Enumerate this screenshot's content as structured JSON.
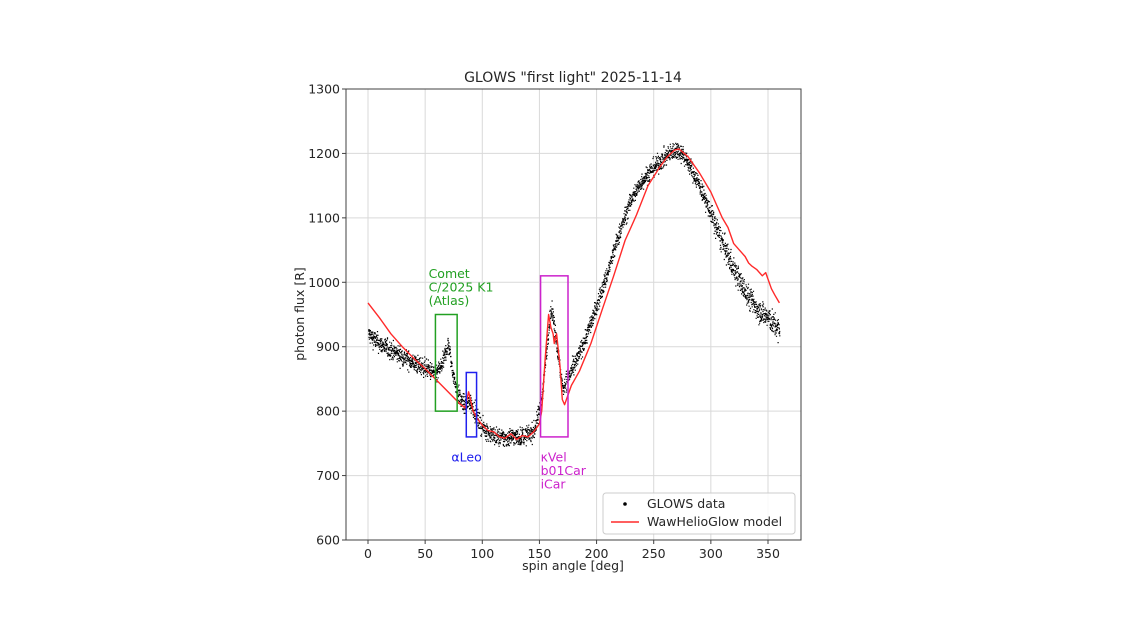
{
  "chart_data": {
    "type": "scatter",
    "title": "GLOWS \"first light\" 2025-11-14",
    "xlabel": "spin angle [deg]",
    "ylabel": "photon flux [R]",
    "xlim": [
      -10,
      378
    ],
    "ylim": [
      600,
      1300
    ],
    "xticks": [
      0,
      50,
      100,
      150,
      200,
      250,
      300,
      350
    ],
    "yticks": [
      600,
      700,
      800,
      900,
      1000,
      1100,
      1200,
      1300
    ],
    "grid": true,
    "legend_position": "lower right",
    "legend": [
      {
        "label": "GLOWS data",
        "marker": "dot",
        "color": "#000000"
      },
      {
        "label": "WawHelioGlow model",
        "marker": "line",
        "color": "#ff2a2a"
      }
    ],
    "series": [
      {
        "name": "GLOWS data",
        "kind": "scatter",
        "color": "#000000",
        "x": [
          0,
          10,
          20,
          30,
          40,
          50,
          55,
          60,
          65,
          68,
          70,
          72,
          75,
          78,
          80,
          85,
          88,
          92,
          95,
          100,
          105,
          110,
          115,
          120,
          125,
          130,
          135,
          140,
          145,
          148,
          152,
          155,
          158,
          160,
          162,
          165,
          168,
          170,
          172,
          175,
          180,
          190,
          200,
          210,
          220,
          230,
          240,
          250,
          260,
          265,
          270,
          275,
          280,
          290,
          300,
          310,
          320,
          330,
          340,
          350,
          360
        ],
        "y": [
          920,
          905,
          895,
          885,
          875,
          868,
          862,
          860,
          875,
          895,
          905,
          880,
          850,
          830,
          820,
          808,
          815,
          805,
          790,
          775,
          768,
          762,
          760,
          758,
          762,
          760,
          762,
          765,
          770,
          790,
          825,
          880,
          935,
          955,
          945,
          900,
          860,
          835,
          845,
          855,
          870,
          915,
          965,
          1020,
          1080,
          1130,
          1160,
          1180,
          1195,
          1203,
          1207,
          1200,
          1185,
          1150,
          1105,
          1060,
          1020,
          985,
          960,
          945,
          925
        ],
        "scatter_amplitude": 12
      },
      {
        "name": "WawHelioGlow model",
        "kind": "line",
        "color": "#ff2a2a",
        "x": [
          0,
          10,
          20,
          30,
          40,
          50,
          60,
          70,
          80,
          85,
          88,
          90,
          92,
          95,
          100,
          105,
          110,
          115,
          120,
          125,
          130,
          135,
          140,
          145,
          150,
          152,
          155,
          158,
          160,
          162,
          163,
          165,
          168,
          170,
          172,
          175,
          178,
          185,
          195,
          205,
          215,
          225,
          230,
          235,
          245,
          255,
          262,
          268,
          272,
          280,
          290,
          300,
          305,
          310,
          315,
          320,
          325,
          330,
          333,
          336,
          340,
          345,
          348,
          350,
          353,
          356,
          360
        ],
        "y": [
          968,
          945,
          920,
          900,
          882,
          866,
          848,
          830,
          812,
          805,
          830,
          815,
          800,
          790,
          778,
          770,
          768,
          760,
          758,
          765,
          756,
          762,
          760,
          768,
          780,
          800,
          880,
          950,
          930,
          920,
          905,
          920,
          870,
          818,
          810,
          825,
          840,
          862,
          905,
          958,
          1010,
          1065,
          1085,
          1105,
          1150,
          1178,
          1195,
          1205,
          1207,
          1195,
          1170,
          1140,
          1120,
          1100,
          1085,
          1060,
          1050,
          1040,
          1030,
          1025,
          1020,
          1010,
          1015,
          1005,
          990,
          980,
          968
        ]
      }
    ],
    "annotations": [
      {
        "text_lines": [
          "Comet",
          "C/2025 K1",
          "(Atlas)"
        ],
        "color": "#22a022",
        "box": {
          "x0": 59,
          "x1": 78,
          "y0": 800,
          "y1": 950
        },
        "text_at": {
          "x": 53,
          "y": 1010
        }
      },
      {
        "text_lines": [
          "αLeo"
        ],
        "color": "#2020ee",
        "box": {
          "x0": 86,
          "x1": 95,
          "y0": 760,
          "y1": 860
        },
        "text_at": {
          "x": 73,
          "y": 728
        }
      },
      {
        "text_lines": [
          "κVel",
          "b01Car",
          "iCar"
        ],
        "color": "#cc22cc",
        "box": {
          "x0": 151,
          "x1": 175,
          "y0": 760,
          "y1": 1010
        },
        "text_at": {
          "x": 151,
          "y": 728
        }
      }
    ]
  }
}
